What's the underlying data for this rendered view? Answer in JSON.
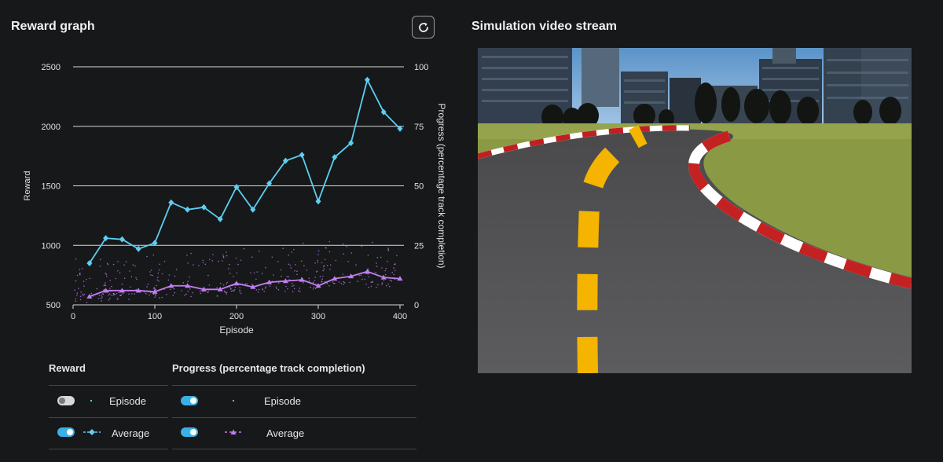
{
  "reward_panel": {
    "title": "Reward graph"
  },
  "video_panel": {
    "title": "Simulation video stream"
  },
  "icons": {
    "refresh": "refresh-icon"
  },
  "colors": {
    "background": "#17181a",
    "reward_series": "#5ccff2",
    "progress_series": "#c27ef0",
    "toggle_on": "#3ab0e6"
  },
  "chart_data": {
    "type": "line",
    "xlabel": "Episode",
    "ylabel_left": "Reward",
    "ylabel_right": "Progress (percentage track completion)",
    "x_ticks": [
      "0",
      "100",
      "200",
      "300",
      "400"
    ],
    "y_left_ticks": [
      "500",
      "1000",
      "1500",
      "2000",
      "2500"
    ],
    "y_right_ticks": [
      "0",
      "25",
      "50",
      "75",
      "100"
    ],
    "xlim": [
      0,
      400
    ],
    "ylim_left": [
      500,
      2500
    ],
    "ylim_right": [
      0,
      100
    ],
    "grid": true,
    "series": [
      {
        "name": "Reward Average",
        "axis": "left",
        "x": [
          20,
          40,
          60,
          80,
          100,
          120,
          140,
          160,
          180,
          200,
          220,
          240,
          260,
          280,
          300,
          320,
          340,
          360,
          380,
          400
        ],
        "values": [
          850,
          1060,
          1050,
          970,
          1020,
          1360,
          1300,
          1320,
          1220,
          1490,
          1300,
          1520,
          1710,
          1760,
          1370,
          1740,
          1860,
          2390,
          2120,
          1980
        ]
      },
      {
        "name": "Progress Average",
        "axis": "right",
        "x": [
          20,
          40,
          60,
          80,
          100,
          120,
          140,
          160,
          180,
          200,
          220,
          240,
          260,
          280,
          300,
          320,
          340,
          360,
          380,
          400
        ],
        "values": [
          3.5,
          6,
          6,
          6,
          5.5,
          8,
          8,
          6.5,
          6.5,
          9,
          7.5,
          9.5,
          10,
          10.5,
          8,
          11,
          12,
          14,
          11.5,
          11
        ]
      }
    ]
  },
  "legend": {
    "reward_header": "Reward",
    "progress_header": "Progress (percentage track completion)",
    "episode_label": "Episode",
    "average_label": "Average",
    "toggles": {
      "reward_episode": false,
      "reward_average": true,
      "progress_episode": true,
      "progress_average": true
    }
  }
}
